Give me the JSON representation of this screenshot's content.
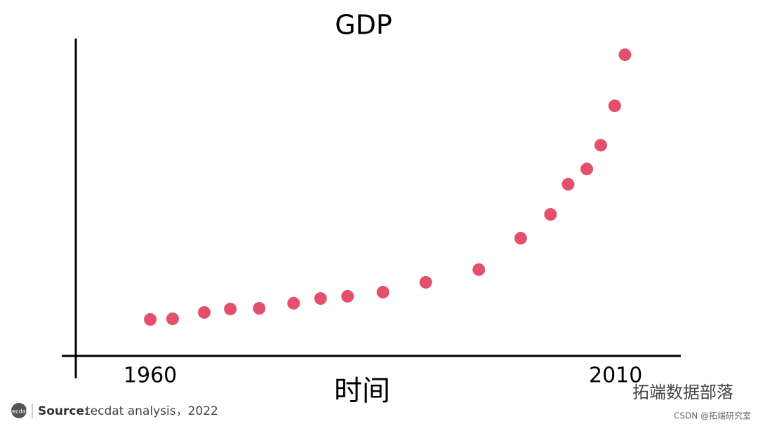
{
  "chart_data": {
    "type": "scatter",
    "title": "GDP",
    "x_label": "时间",
    "x": [
      1960,
      1962.4,
      1965.8,
      1968.6,
      1971.7,
      1975.4,
      1978.3,
      1981.2,
      1985,
      1989.6,
      1995.3,
      1999.8,
      2003,
      2004.9,
      2006.9,
      2008.4,
      2009.9,
      2011
    ],
    "values": [
      11.5,
      11.7,
      13.7,
      14.8,
      15.0,
      16.6,
      18.1,
      18.8,
      20.1,
      23.2,
      27.2,
      37.1,
      44.6,
      54.1,
      58.9,
      66.4,
      78.8,
      94.9
    ],
    "color": "#e4506b",
    "xlim": [
      1952,
      2017
    ],
    "xticks": [
      1960,
      2010
    ],
    "ylim": [
      0,
      100
    ],
    "source_label": "Source:",
    "source": "tecdat analysis，2022",
    "logo": "tecdat",
    "watermark": "拓端数据部落",
    "credit": "CSDN @拓端研究室"
  }
}
